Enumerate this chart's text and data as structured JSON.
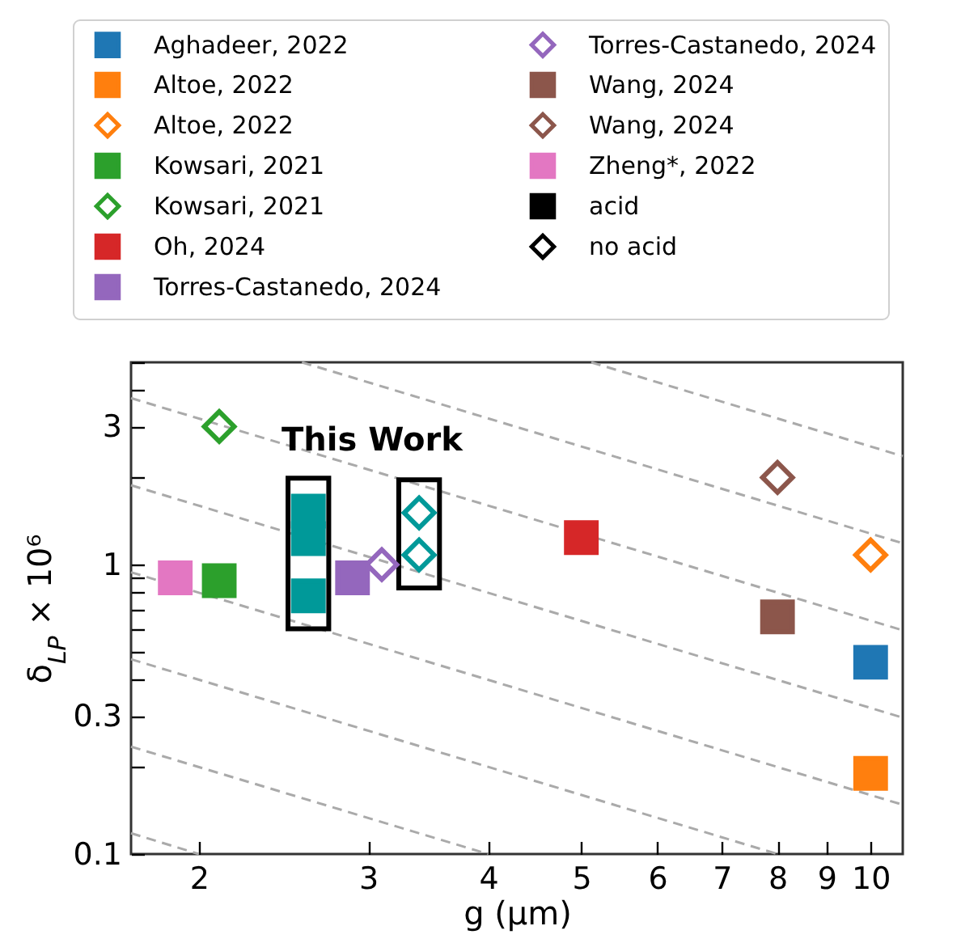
{
  "chart_data": {
    "type": "scatter",
    "xlabel": "g (μm)",
    "ylabel": "δ$_{LP}$ × 10⁶",
    "log": "xy",
    "legend": "top left",
    "xlim": [
      1.7,
      10.8
    ],
    "xticks": [
      2,
      3,
      4,
      5,
      6,
      7,
      8,
      9,
      10
    ],
    "ylim": [
      0.1,
      5
    ],
    "yticks": [
      0.1,
      {
        "value": 0.2,
        "label": null
      },
      0.3,
      {
        "value": 0.4,
        "label": null
      },
      {
        "value": 0.5,
        "label": null
      },
      {
        "value": 0.6,
        "label": null
      },
      {
        "value": 0.7,
        "label": null
      },
      {
        "value": 0.8,
        "label": null
      },
      {
        "value": 0.9,
        "label": null
      },
      1,
      {
        "value": 2,
        "label": null
      },
      3,
      {
        "value": 4,
        "label": null
      },
      {
        "value": 5,
        "label": null
      }
    ],
    "annotations": [
      "This Work"
    ],
    "series": [
      {
        "name": "Aghadeer, 2022",
        "color": "#1f77b4",
        "marker": "square",
        "x": [
          10
        ],
        "values": [
          0.46
        ]
      },
      {
        "name": "Altoe, 2022",
        "color": "#ff7f0e",
        "marker": "square",
        "x": [
          10
        ],
        "values": [
          0.19
        ]
      },
      {
        "name": "Altoe, 2022",
        "color": "#ff7f0e",
        "marker": "diamond",
        "x": [
          10
        ],
        "values": [
          1.08
        ]
      },
      {
        "name": "Kowsari, 2021",
        "color": "#2ca02c",
        "marker": "square",
        "x": [
          2.1
        ],
        "values": [
          0.88
        ]
      },
      {
        "name": "Kowsari, 2021",
        "color": "#2ca02c",
        "marker": "diamond",
        "x": [
          2.1
        ],
        "values": [
          3.0
        ]
      },
      {
        "name": "Oh, 2024",
        "color": "#d62728",
        "marker": "square",
        "x": [
          5
        ],
        "values": [
          1.24
        ]
      },
      {
        "name": "Torres-Castanedo, 2024",
        "color": "#9467bd",
        "marker": "square",
        "x": [
          2.89
        ],
        "values": [
          0.9
        ]
      },
      {
        "name": "Torres-Castanedo, 2024",
        "color": "#9467bd",
        "marker": "diamond",
        "x": [
          3.1
        ],
        "values": [
          1.0
        ]
      },
      {
        "name": "Wang, 2024",
        "color": "#8c564b",
        "marker": "square",
        "x": [
          8
        ],
        "values": [
          0.66
        ]
      },
      {
        "name": "Wang, 2024",
        "color": "#8c564b",
        "marker": "diamond",
        "x": [
          8
        ],
        "values": [
          2.0
        ]
      },
      {
        "name": "Zheng*, 2022",
        "color": "#e377c2",
        "marker": "square",
        "x": [
          1.89
        ],
        "values": [
          0.9
        ]
      },
      {
        "name": "acid",
        "color": "#000000",
        "marker": "square"
      },
      {
        "name": "no acid",
        "color": "#000000",
        "marker": "diamond"
      },
      {
        "color": "#009999",
        "marker": "square",
        "x": [
          2.6,
          2.6,
          2.6
        ],
        "values": [
          1.53,
          1.23,
          0.78
        ]
      },
      {
        "color": "#009999",
        "marker": "diamond",
        "x": [
          3.39,
          3.39
        ],
        "values": [
          1.51,
          1.08
        ]
      },
      {
        "type": "line",
        "color": "#aaaaaa",
        "line_style": "dashed",
        "x": [
          1.7,
          2
        ],
        "values": [
          0.118,
          0.1
        ]
      },
      {
        "type": "line",
        "color": "#aaaaaa",
        "line_style": "dashed",
        "x": [
          1.7,
          4
        ],
        "values": [
          0.235,
          0.1
        ]
      },
      {
        "type": "line",
        "color": "#aaaaaa",
        "line_style": "dashed",
        "x": [
          1.7,
          8
        ],
        "values": [
          0.471,
          0.1
        ]
      },
      {
        "type": "line",
        "color": "#aaaaaa",
        "line_style": "dashed",
        "x": [
          1.7,
          10.8
        ],
        "values": [
          0.941,
          0.148
        ]
      },
      {
        "type": "line",
        "color": "#aaaaaa",
        "line_style": "dashed",
        "x": [
          1.7,
          10.8
        ],
        "values": [
          1.88,
          0.296
        ]
      },
      {
        "type": "line",
        "color": "#aaaaaa",
        "line_style": "dashed",
        "x": [
          1.7,
          10.8
        ],
        "values": [
          3.76,
          0.593
        ]
      },
      {
        "type": "line",
        "color": "#aaaaaa",
        "line_style": "dashed",
        "x": [
          2.56,
          10.8
        ],
        "values": [
          5,
          1.185
        ]
      },
      {
        "type": "line",
        "color": "#aaaaaa",
        "line_style": "dashed",
        "x": [
          5.12,
          10.8
        ],
        "values": [
          5,
          2.37
        ]
      }
    ]
  }
}
